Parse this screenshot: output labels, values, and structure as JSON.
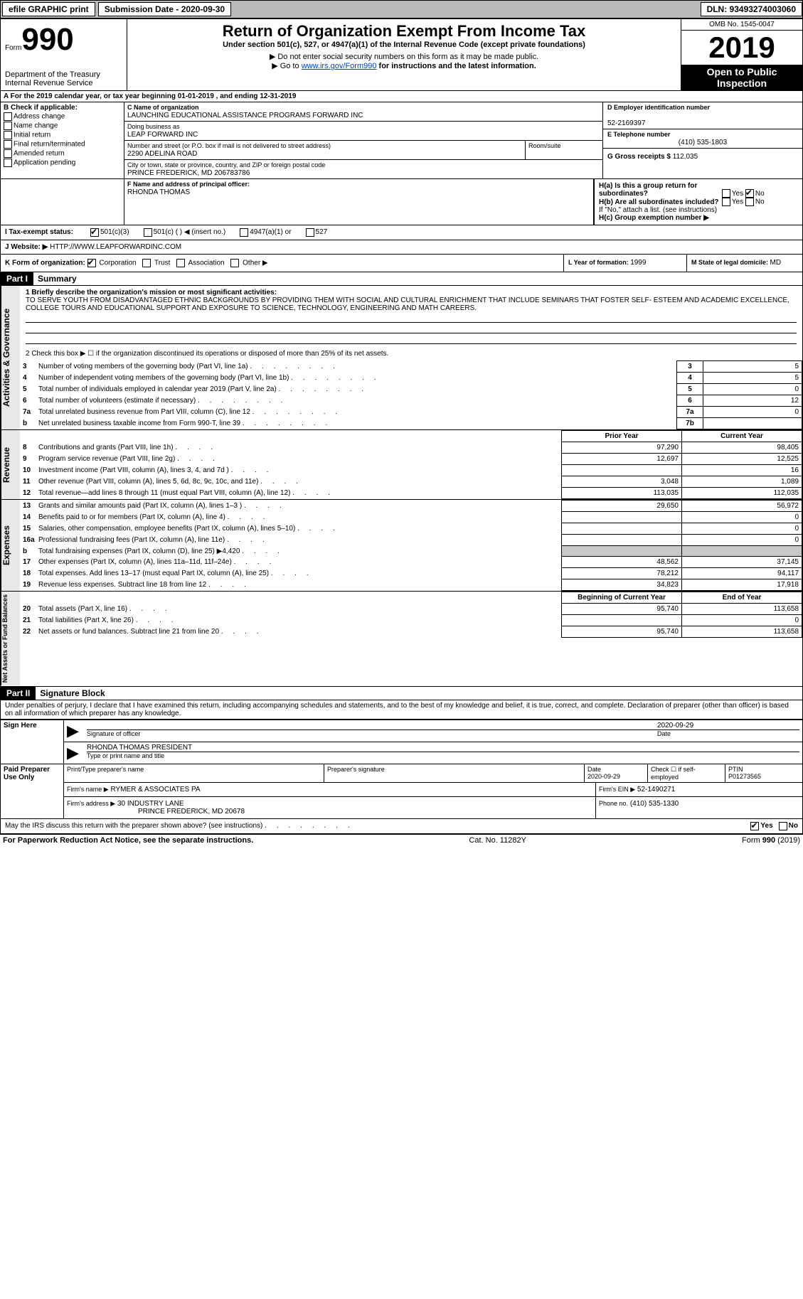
{
  "topbar": {
    "efile": "efile GRAPHIC print",
    "sub_date_label": "Submission Date - 2020-09-30",
    "dln": "DLN: 93493274003060"
  },
  "header": {
    "form_word": "Form",
    "form_num": "990",
    "dept": "Department of the Treasury\nInternal Revenue Service",
    "title": "Return of Organization Exempt From Income Tax",
    "subtitle": "Under section 501(c), 527, or 4947(a)(1) of the Internal Revenue Code (except private foundations)",
    "note1": "▶ Do not enter social security numbers on this form as it may be made public.",
    "note2_pre": "▶ Go to ",
    "note2_url": "www.irs.gov/Form990",
    "note2_post": " for instructions and the latest information.",
    "omb": "OMB No. 1545-0047",
    "year": "2019",
    "inspection": "Open to Public Inspection"
  },
  "lineA": "A For the 2019 calendar year, or tax year beginning 01-01-2019    , and ending 12-31-2019",
  "boxB": {
    "label": "B Check if applicable:",
    "items": [
      "Address change",
      "Name change",
      "Initial return",
      "Final return/terminated",
      "Amended return",
      "Application pending"
    ]
  },
  "boxC": {
    "label_name": "C Name of organization",
    "name": "LAUNCHING EDUCATIONAL ASSISTANCE PROGRAMS FORWARD INC",
    "dba_label": "Doing business as",
    "dba": "LEAP FORWARD INC",
    "street_label": "Number and street (or P.O. box if mail is not delivered to street address)",
    "room_label": "Room/suite",
    "street": "2290 ADELINA ROAD",
    "city_label": "City or town, state or province, country, and ZIP or foreign postal code",
    "city": "PRINCE FREDERICK, MD  206783786"
  },
  "boxD": {
    "label": "D Employer identification number",
    "val": "52-2169397"
  },
  "boxE": {
    "label": "E Telephone number",
    "val": "(410) 535-1803"
  },
  "boxG": {
    "label": "G Gross receipts $ ",
    "val": "112,035"
  },
  "boxF": {
    "label": "F Name and address of principal officer:",
    "val": "RHONDA THOMAS"
  },
  "boxH": {
    "a_label": "H(a)  Is this a group return for subordinates?",
    "b_label": "H(b)  Are all subordinates included?",
    "yes": "Yes",
    "no": "No",
    "note": "If \"No,\" attach a list. (see instructions)",
    "c_label": "H(c)  Group exemption number ▶"
  },
  "boxI": {
    "label": "I  Tax-exempt status:",
    "opts": [
      "501(c)(3)",
      "501(c) (   ) ◀ (insert no.)",
      "4947(a)(1) or",
      "527"
    ]
  },
  "boxJ": {
    "label": "J   Website: ▶",
    "val": "HTTP://WWW.LEAPFORWARDINC.COM"
  },
  "boxK": {
    "label": "K Form of organization:",
    "opts": [
      "Corporation",
      "Trust",
      "Association",
      "Other ▶"
    ]
  },
  "boxL": {
    "label": "L Year of formation: ",
    "val": "1999"
  },
  "boxM": {
    "label": "M State of legal domicile: ",
    "val": "MD"
  },
  "part1": {
    "num": "Part I",
    "title": "Summary",
    "q1_label": "1  Briefly describe the organization's mission or most significant activities:",
    "q1_text": "TO SERVE YOUTH FROM DISADVANTAGED ETHNIC BACKGROUNDS BY PROVIDING THEM WITH SOCIAL AND CULTURAL ENRICHMENT THAT INCLUDE SEMINARS THAT FOSTER SELF- ESTEEM AND ACADEMIC EXCELLENCE, COLLEGE TOURS AND EDUCATIONAL SUPPORT AND EXPOSURE TO SCIENCE, TECHNOLOGY, ENGINEERING AND MATH CAREERS.",
    "q2": "2   Check this box ▶ ☐  if the organization discontinued its operations or disposed of more than 25% of its net assets.",
    "gov_rows": [
      {
        "n": "3",
        "label": "Number of voting members of the governing body (Part VI, line 1a)",
        "box": "3",
        "val": "5"
      },
      {
        "n": "4",
        "label": "Number of independent voting members of the governing body (Part VI, line 1b)",
        "box": "4",
        "val": "5"
      },
      {
        "n": "5",
        "label": "Total number of individuals employed in calendar year 2019 (Part V, line 2a)",
        "box": "5",
        "val": "0"
      },
      {
        "n": "6",
        "label": "Total number of volunteers (estimate if necessary)",
        "box": "6",
        "val": "12"
      },
      {
        "n": "7a",
        "label": "Total unrelated business revenue from Part VIII, column (C), line 12",
        "box": "7a",
        "val": "0"
      },
      {
        "n": "b",
        "label": "Net unrelated business taxable income from Form 990-T, line 39",
        "box": "7b",
        "val": ""
      }
    ],
    "col_prior": "Prior Year",
    "col_current": "Current Year",
    "col_begin": "Beginning of Current Year",
    "col_end": "End of Year",
    "revenue_rows": [
      {
        "n": "8",
        "label": "Contributions and grants (Part VIII, line 1h)",
        "p": "97,290",
        "c": "98,405"
      },
      {
        "n": "9",
        "label": "Program service revenue (Part VIII, line 2g)",
        "p": "12,697",
        "c": "12,525"
      },
      {
        "n": "10",
        "label": "Investment income (Part VIII, column (A), lines 3, 4, and 7d )",
        "p": "",
        "c": "16"
      },
      {
        "n": "11",
        "label": "Other revenue (Part VIII, column (A), lines 5, 6d, 8c, 9c, 10c, and 11e)",
        "p": "3,048",
        "c": "1,089"
      },
      {
        "n": "12",
        "label": "Total revenue—add lines 8 through 11 (must equal Part VIII, column (A), line 12)",
        "p": "113,035",
        "c": "112,035"
      }
    ],
    "expense_rows": [
      {
        "n": "13",
        "label": "Grants and similar amounts paid (Part IX, column (A), lines 1–3 )",
        "p": "29,650",
        "c": "56,972"
      },
      {
        "n": "14",
        "label": "Benefits paid to or for members (Part IX, column (A), line 4)",
        "p": "",
        "c": "0"
      },
      {
        "n": "15",
        "label": "Salaries, other compensation, employee benefits (Part IX, column (A), lines 5–10)",
        "p": "",
        "c": "0"
      },
      {
        "n": "16a",
        "label": "Professional fundraising fees (Part IX, column (A), line 11e)",
        "p": "",
        "c": "0"
      },
      {
        "n": "b",
        "label": "Total fundraising expenses (Part IX, column (D), line 25) ▶4,420",
        "p": "GRAY",
        "c": "GRAY"
      },
      {
        "n": "17",
        "label": "Other expenses (Part IX, column (A), lines 11a–11d, 11f–24e)",
        "p": "48,562",
        "c": "37,145"
      },
      {
        "n": "18",
        "label": "Total expenses. Add lines 13–17 (must equal Part IX, column (A), line 25)",
        "p": "78,212",
        "c": "94,117"
      },
      {
        "n": "19",
        "label": "Revenue less expenses. Subtract line 18 from line 12",
        "p": "34,823",
        "c": "17,918"
      }
    ],
    "netasset_rows": [
      {
        "n": "20",
        "label": "Total assets (Part X, line 16)",
        "p": "95,740",
        "c": "113,658"
      },
      {
        "n": "21",
        "label": "Total liabilities (Part X, line 26)",
        "p": "",
        "c": "0"
      },
      {
        "n": "22",
        "label": "Net assets or fund balances. Subtract line 21 from line 20",
        "p": "95,740",
        "c": "113,658"
      }
    ],
    "vlabel_gov": "Activities & Governance",
    "vlabel_rev": "Revenue",
    "vlabel_exp": "Expenses",
    "vlabel_net": "Net Assets or Fund Balances"
  },
  "part2": {
    "num": "Part II",
    "title": "Signature Block",
    "decl": "Under penalties of perjury, I declare that I have examined this return, including accompanying schedules and statements, and to the best of my knowledge and belief, it is true, correct, and complete. Declaration of preparer (other than officer) is based on all information of which preparer has any knowledge.",
    "sign_here": "Sign Here",
    "sig_officer": "Signature of officer",
    "sig_date": "2020-09-29",
    "date_lbl": "Date",
    "officer_typed": "RHONDA THOMAS  PRESIDENT",
    "type_name_lbl": "Type or print name and title",
    "paid": "Paid Preparer Use Only",
    "pp_name_lbl": "Print/Type preparer's name",
    "pp_sig_lbl": "Preparer's signature",
    "pp_date_lbl": "Date",
    "pp_date": "2020-09-29",
    "pp_check_lbl": "Check ☐ if self-employed",
    "ptin_lbl": "PTIN",
    "ptin": "P01273565",
    "firm_name_lbl": "Firm's name    ▶",
    "firm_name": "RYMER & ASSOCIATES PA",
    "firm_ein_lbl": "Firm's EIN ▶",
    "firm_ein": "52-1490271",
    "firm_addr_lbl": "Firm's address ▶",
    "firm_addr1": "30 INDUSTRY LANE",
    "firm_addr2": "PRINCE FREDERICK, MD  20678",
    "firm_phone_lbl": "Phone no.",
    "firm_phone": "(410) 535-1330",
    "discuss": "May the IRS discuss this return with the preparer shown above? (see instructions)",
    "yes": "Yes",
    "no": "No"
  },
  "footer": {
    "left": "For Paperwork Reduction Act Notice, see the separate instructions.",
    "mid": "Cat. No. 11282Y",
    "right": "Form 990 (2019)"
  }
}
